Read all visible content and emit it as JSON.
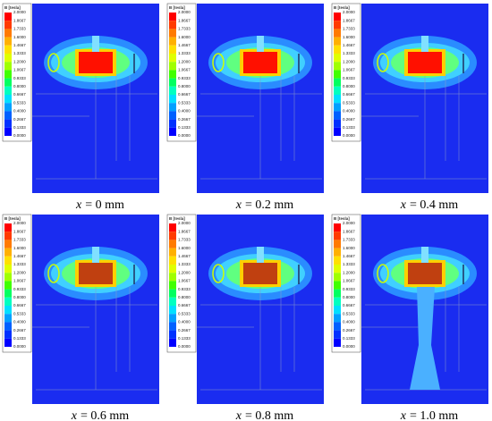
{
  "legend": {
    "title": "B [tesla]",
    "labels": [
      "2.0000",
      "1.8667",
      "1.7333",
      "1.6000",
      "1.4667",
      "1.3333",
      "1.2000",
      "1.0667",
      "0.9333",
      "0.8000",
      "0.6667",
      "0.5333",
      "0.4000",
      "0.2667",
      "0.1333",
      "0.0000"
    ],
    "colors": [
      "#ff0000",
      "#ff3a00",
      "#ff7a00",
      "#ffb000",
      "#ffe000",
      "#e0ff00",
      "#a0ff00",
      "#40ff00",
      "#00ff60",
      "#00ffc0",
      "#00e0ff",
      "#00a0ff",
      "#0060ff",
      "#0030ff",
      "#0000ff"
    ]
  },
  "panels": [
    {
      "variable": "x",
      "text": "= 0 mm"
    },
    {
      "variable": "x",
      "text": "= 0.2 mm"
    },
    {
      "variable": "x",
      "text": "= 0.4 mm"
    },
    {
      "variable": "x",
      "text": "= 0.6 mm"
    },
    {
      "variable": "x",
      "text": "= 0.8 mm"
    },
    {
      "variable": "x",
      "text": "= 1.0 mm"
    }
  ]
}
